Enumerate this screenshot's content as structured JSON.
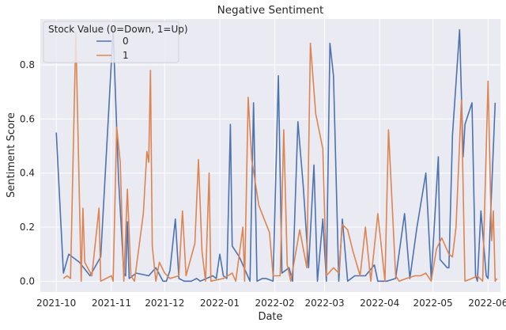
{
  "chart_data": {
    "type": "line",
    "title": "Negative Sentiment",
    "xlabel": "Date",
    "ylabel": "Sentiment Score",
    "xlim": [
      "2021-09-22",
      "2022-06-08"
    ],
    "ylim": [
      -0.04,
      0.97
    ],
    "x_ticks": [
      {
        "date": "2021-10-01",
        "label": "2021-10"
      },
      {
        "date": "2021-11-01",
        "label": "2021-11"
      },
      {
        "date": "2021-12-01",
        "label": "2021-12"
      },
      {
        "date": "2022-01-01",
        "label": "2022-01"
      },
      {
        "date": "2022-02-01",
        "label": "2022-02"
      },
      {
        "date": "2022-03-01",
        "label": "2022-03"
      },
      {
        "date": "2022-04-01",
        "label": "2022-04"
      },
      {
        "date": "2022-05-01",
        "label": "2022-05"
      },
      {
        "date": "2022-06-01",
        "label": "2022-06"
      }
    ],
    "y_ticks": [
      {
        "value": 0.0,
        "label": "0.0"
      },
      {
        "value": 0.2,
        "label": "0.2"
      },
      {
        "value": 0.4,
        "label": "0.4"
      },
      {
        "value": 0.6,
        "label": "0.6"
      },
      {
        "value": 0.8,
        "label": "0.8"
      }
    ],
    "grid": true,
    "background": "#eaeaf2",
    "legend": {
      "title": "Stock Value (0=Down, 1=Up)",
      "placement": "top-left"
    },
    "series": [
      {
        "name": "0",
        "color": "#4c72b0",
        "points": [
          [
            "2021-10-01",
            0.55
          ],
          [
            "2021-10-05",
            0.03
          ],
          [
            "2021-10-08",
            0.1
          ],
          [
            "2021-10-14",
            0.07
          ],
          [
            "2021-10-20",
            0.02
          ],
          [
            "2021-10-26",
            0.09
          ],
          [
            "2021-11-02",
            0.93
          ],
          [
            "2021-11-05",
            0.38
          ],
          [
            "2021-11-08",
            0.03
          ],
          [
            "2021-11-09",
            0.02
          ],
          [
            "2021-11-10",
            0.22
          ],
          [
            "2021-11-11",
            0.01
          ],
          [
            "2021-11-15",
            0.03
          ],
          [
            "2021-11-22",
            0.02
          ],
          [
            "2021-11-26",
            0.05
          ],
          [
            "2021-11-30",
            0.0
          ],
          [
            "2021-12-02",
            0.0
          ],
          [
            "2021-12-04",
            0.04
          ],
          [
            "2021-12-07",
            0.23
          ],
          [
            "2021-12-09",
            0.01
          ],
          [
            "2021-12-12",
            0.0
          ],
          [
            "2021-12-16",
            0.0
          ],
          [
            "2021-12-19",
            0.01
          ],
          [
            "2021-12-21",
            0.0
          ],
          [
            "2021-12-28",
            0.02
          ],
          [
            "2021-12-30",
            0.01
          ],
          [
            "2022-01-01",
            0.1
          ],
          [
            "2022-01-03",
            0.02
          ],
          [
            "2022-01-05",
            0.01
          ],
          [
            "2022-01-07",
            0.58
          ],
          [
            "2022-01-08",
            0.13
          ],
          [
            "2022-01-12",
            0.09
          ],
          [
            "2022-01-16",
            0.03
          ],
          [
            "2022-01-18",
            0.0
          ],
          [
            "2022-01-20",
            0.66
          ],
          [
            "2022-01-22",
            0.0
          ],
          [
            "2022-01-25",
            0.01
          ],
          [
            "2022-01-27",
            0.01
          ],
          [
            "2022-01-31",
            0.0
          ],
          [
            "2022-02-03",
            0.76
          ],
          [
            "2022-02-05",
            0.03
          ],
          [
            "2022-02-09",
            0.05
          ],
          [
            "2022-02-11",
            0.0
          ],
          [
            "2022-02-14",
            0.59
          ],
          [
            "2022-02-17",
            0.35
          ],
          [
            "2022-02-20",
            0.05
          ],
          [
            "2022-02-23",
            0.43
          ],
          [
            "2022-02-25",
            0.0
          ],
          [
            "2022-02-28",
            0.23
          ],
          [
            "2022-03-02",
            0.0
          ],
          [
            "2022-03-04",
            0.88
          ],
          [
            "2022-03-06",
            0.76
          ],
          [
            "2022-03-09",
            0.0
          ],
          [
            "2022-03-11",
            0.23
          ],
          [
            "2022-03-14",
            0.0
          ],
          [
            "2022-03-18",
            0.02
          ],
          [
            "2022-03-24",
            0.02
          ],
          [
            "2022-03-29",
            0.06
          ],
          [
            "2022-03-31",
            0.0
          ],
          [
            "2022-04-05",
            0.0
          ],
          [
            "2022-04-10",
            0.01
          ],
          [
            "2022-04-15",
            0.25
          ],
          [
            "2022-04-18",
            0.01
          ],
          [
            "2022-04-22",
            0.2
          ],
          [
            "2022-04-27",
            0.4
          ],
          [
            "2022-04-30",
            0.01
          ],
          [
            "2022-05-04",
            0.46
          ],
          [
            "2022-05-05",
            0.08
          ],
          [
            "2022-05-09",
            0.05
          ],
          [
            "2022-05-10",
            0.05
          ],
          [
            "2022-05-12",
            0.54
          ],
          [
            "2022-05-16",
            0.93
          ],
          [
            "2022-05-18",
            0.46
          ],
          [
            "2022-05-19",
            0.58
          ],
          [
            "2022-05-23",
            0.66
          ],
          [
            "2022-05-25",
            0.02
          ],
          [
            "2022-05-26",
            0.0
          ],
          [
            "2022-05-28",
            0.26
          ],
          [
            "2022-05-31",
            0.02
          ],
          [
            "2022-06-01",
            0.01
          ],
          [
            "2022-06-05",
            0.66
          ]
        ]
      },
      {
        "name": "1",
        "color": "#dd8452",
        "points": [
          [
            "2021-10-05",
            0.01
          ],
          [
            "2021-10-07",
            0.02
          ],
          [
            "2021-10-09",
            0.01
          ],
          [
            "2021-10-12",
            0.92
          ],
          [
            "2021-10-15",
            0.0
          ],
          [
            "2021-10-16",
            0.27
          ],
          [
            "2021-10-17",
            0.07
          ],
          [
            "2021-10-21",
            0.02
          ],
          [
            "2021-10-25",
            0.27
          ],
          [
            "2021-10-26",
            0.0
          ],
          [
            "2021-10-29",
            0.01
          ],
          [
            "2021-11-01",
            0.02
          ],
          [
            "2021-11-02",
            0.0
          ],
          [
            "2021-11-04",
            0.57
          ],
          [
            "2021-11-06",
            0.44
          ],
          [
            "2021-11-08",
            0.0
          ],
          [
            "2021-11-10",
            0.34
          ],
          [
            "2021-11-12",
            0.02
          ],
          [
            "2021-11-14",
            0.0
          ],
          [
            "2021-11-19",
            0.25
          ],
          [
            "2021-11-21",
            0.48
          ],
          [
            "2021-11-22",
            0.44
          ],
          [
            "2021-11-23",
            0.78
          ],
          [
            "2021-11-24",
            0.13
          ],
          [
            "2021-11-26",
            0.0
          ],
          [
            "2021-11-28",
            0.07
          ],
          [
            "2021-12-01",
            0.03
          ],
          [
            "2021-12-04",
            0.01
          ],
          [
            "2021-12-09",
            0.02
          ],
          [
            "2021-12-11",
            0.26
          ],
          [
            "2021-12-13",
            0.02
          ],
          [
            "2021-12-18",
            0.14
          ],
          [
            "2021-12-20",
            0.45
          ],
          [
            "2021-12-22",
            0.11
          ],
          [
            "2021-12-24",
            0.0
          ],
          [
            "2021-12-26",
            0.4
          ],
          [
            "2021-12-27",
            0.0
          ],
          [
            "2022-01-03",
            0.01
          ],
          [
            "2022-01-08",
            0.03
          ],
          [
            "2022-01-10",
            0.0
          ],
          [
            "2022-01-14",
            0.2
          ],
          [
            "2022-01-15",
            0.0
          ],
          [
            "2022-01-17",
            0.68
          ],
          [
            "2022-01-19",
            0.45
          ],
          [
            "2022-01-23",
            0.28
          ],
          [
            "2022-01-29",
            0.18
          ],
          [
            "2022-01-31",
            0.02
          ],
          [
            "2022-02-04",
            0.02
          ],
          [
            "2022-02-06",
            0.56
          ],
          [
            "2022-02-08",
            0.06
          ],
          [
            "2022-02-10",
            0.0
          ],
          [
            "2022-02-15",
            0.19
          ],
          [
            "2022-02-19",
            0.05
          ],
          [
            "2022-02-21",
            0.88
          ],
          [
            "2022-02-24",
            0.62
          ],
          [
            "2022-02-28",
            0.49
          ],
          [
            "2022-03-02",
            0.02
          ],
          [
            "2022-03-06",
            0.05
          ],
          [
            "2022-03-09",
            0.03
          ],
          [
            "2022-03-11",
            0.21
          ],
          [
            "2022-03-14",
            0.19
          ],
          [
            "2022-03-17",
            0.11
          ],
          [
            "2022-03-21",
            0.02
          ],
          [
            "2022-03-24",
            0.2
          ],
          [
            "2022-03-27",
            0.0
          ],
          [
            "2022-03-31",
            0.25
          ],
          [
            "2022-04-04",
            0.0
          ],
          [
            "2022-04-06",
            0.56
          ],
          [
            "2022-04-10",
            0.02
          ],
          [
            "2022-04-12",
            0.0
          ],
          [
            "2022-04-16",
            0.01
          ],
          [
            "2022-04-21",
            0.02
          ],
          [
            "2022-04-24",
            0.02
          ],
          [
            "2022-04-27",
            0.03
          ],
          [
            "2022-04-30",
            0.0
          ],
          [
            "2022-05-03",
            0.12
          ],
          [
            "2022-05-06",
            0.16
          ],
          [
            "2022-05-10",
            0.1
          ],
          [
            "2022-05-12",
            0.09
          ],
          [
            "2022-05-14",
            0.2
          ],
          [
            "2022-05-17",
            0.67
          ],
          [
            "2022-05-19",
            0.0
          ],
          [
            "2022-05-23",
            0.01
          ],
          [
            "2022-05-26",
            0.02
          ],
          [
            "2022-05-29",
            0.0
          ],
          [
            "2022-06-01",
            0.74
          ],
          [
            "2022-06-03",
            0.15
          ],
          [
            "2022-06-04",
            0.26
          ],
          [
            "2022-06-05",
            0.0
          ],
          [
            "2022-06-06",
            0.01
          ]
        ]
      }
    ]
  }
}
